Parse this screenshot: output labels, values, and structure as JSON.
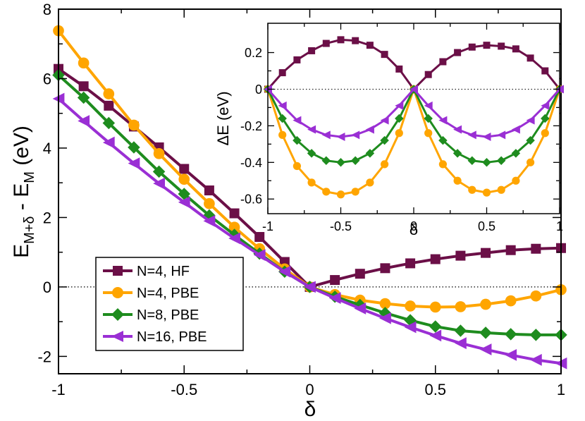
{
  "chart_data": [
    {
      "type": "line",
      "title": "",
      "xlabel": "δ",
      "ylabel_main": "E",
      "ylabel_sub1": "M+δ",
      "ylabel_mid": " - E",
      "ylabel_sub2": "M",
      "ylabel_unit": " (eV)",
      "xlim": [
        -1,
        1
      ],
      "ylim": [
        -2.5,
        8
      ],
      "xticks": [
        -1,
        -0.5,
        0,
        0.5,
        1
      ],
      "xtick_labels": [
        "-1",
        "-0.5",
        "0",
        "0.5",
        "1"
      ],
      "yticks": [
        -2,
        0,
        2,
        4,
        6,
        8
      ],
      "ytick_labels": [
        "-2",
        "0",
        "2",
        "4",
        "6",
        "8"
      ],
      "x": [
        -1.0,
        -0.9,
        -0.8,
        -0.7,
        -0.6,
        -0.5,
        -0.4,
        -0.3,
        -0.2,
        -0.1,
        0.0,
        0.1,
        0.2,
        0.3,
        0.4,
        0.5,
        0.6,
        0.7,
        0.8,
        0.9,
        1.0
      ],
      "legend_position": "bottom-left",
      "series": [
        {
          "name": "N=4, HF",
          "color": "#6b0f47",
          "marker": "square",
          "values": [
            6.28,
            5.78,
            5.22,
            4.62,
            4.02,
            3.4,
            2.78,
            2.12,
            1.44,
            0.72,
            0.0,
            0.2,
            0.38,
            0.54,
            0.68,
            0.8,
            0.9,
            0.98,
            1.06,
            1.1,
            1.12
          ]
        },
        {
          "name": "N=4, PBE",
          "color": "#ffa500",
          "marker": "circle",
          "values": [
            7.38,
            6.45,
            5.56,
            4.66,
            3.84,
            3.1,
            2.4,
            1.72,
            1.1,
            0.52,
            0.0,
            -0.22,
            -0.38,
            -0.48,
            -0.55,
            -0.58,
            -0.57,
            -0.5,
            -0.4,
            -0.26,
            -0.08
          ]
        },
        {
          "name": "N=8, PBE",
          "color": "#1e8c1e",
          "marker": "diamond",
          "values": [
            6.1,
            5.45,
            4.72,
            4.02,
            3.32,
            2.68,
            2.06,
            1.5,
            0.96,
            0.44,
            0.0,
            -0.28,
            -0.52,
            -0.75,
            -0.96,
            -1.14,
            -1.26,
            -1.32,
            -1.36,
            -1.38,
            -1.38
          ]
        },
        {
          "name": "N=16, PBE",
          "color": "#9a2fd4",
          "marker": "triangle-left",
          "values": [
            5.42,
            4.78,
            4.16,
            3.56,
            2.98,
            2.44,
            1.9,
            1.4,
            0.92,
            0.44,
            0.0,
            -0.32,
            -0.62,
            -0.9,
            -1.16,
            -1.4,
            -1.62,
            -1.8,
            -1.96,
            -2.1,
            -2.2
          ]
        }
      ],
      "reference_line": {
        "y": 0,
        "style": "dotted"
      }
    },
    {
      "type": "line",
      "title": "",
      "xlabel": "δ",
      "ylabel": "ΔE (eV)",
      "xlim": [
        -1,
        1
      ],
      "ylim": [
        -0.68,
        0.36
      ],
      "xticks": [
        -1,
        -0.5,
        0,
        0.5,
        1
      ],
      "xtick_labels": [
        "-1",
        "-0.5",
        "0",
        "0.5",
        "1"
      ],
      "yticks": [
        0.2,
        0,
        -0.2,
        -0.4,
        -0.6
      ],
      "ytick_labels": [
        "0.2",
        "0",
        "-0.2",
        "-0.4",
        "-0.6"
      ],
      "x": [
        -1.0,
        -0.9,
        -0.8,
        -0.7,
        -0.6,
        -0.5,
        -0.4,
        -0.3,
        -0.2,
        -0.1,
        0.0,
        0.1,
        0.2,
        0.3,
        0.4,
        0.5,
        0.6,
        0.7,
        0.8,
        0.9,
        1.0
      ],
      "series": [
        {
          "name": "N=4, HF",
          "color": "#6b0f47",
          "marker": "square",
          "values": [
            0.0,
            0.09,
            0.16,
            0.21,
            0.25,
            0.27,
            0.265,
            0.24,
            0.19,
            0.11,
            0.0,
            0.08,
            0.15,
            0.2,
            0.23,
            0.24,
            0.235,
            0.22,
            0.17,
            0.1,
            0.0
          ]
        },
        {
          "name": "N=4, PBE",
          "color": "#ffa500",
          "marker": "circle",
          "values": [
            0.0,
            -0.25,
            -0.42,
            -0.51,
            -0.56,
            -0.575,
            -0.56,
            -0.51,
            -0.41,
            -0.24,
            0.0,
            -0.24,
            -0.41,
            -0.5,
            -0.55,
            -0.565,
            -0.55,
            -0.5,
            -0.4,
            -0.24,
            0.0
          ]
        },
        {
          "name": "N=8, PBE",
          "color": "#1e8c1e",
          "marker": "diamond",
          "values": [
            0.0,
            -0.16,
            -0.28,
            -0.35,
            -0.39,
            -0.4,
            -0.39,
            -0.35,
            -0.28,
            -0.16,
            0.0,
            -0.16,
            -0.28,
            -0.35,
            -0.39,
            -0.4,
            -0.39,
            -0.35,
            -0.28,
            -0.16,
            0.0
          ]
        },
        {
          "name": "N=16, PBE",
          "color": "#9a2fd4",
          "marker": "triangle-left",
          "values": [
            0.0,
            -0.09,
            -0.17,
            -0.22,
            -0.25,
            -0.26,
            -0.25,
            -0.22,
            -0.17,
            -0.09,
            0.0,
            -0.09,
            -0.17,
            -0.22,
            -0.25,
            -0.26,
            -0.25,
            -0.22,
            -0.17,
            -0.09,
            0.0
          ]
        }
      ],
      "reference_line": {
        "y": 0,
        "style": "dotted"
      }
    }
  ]
}
